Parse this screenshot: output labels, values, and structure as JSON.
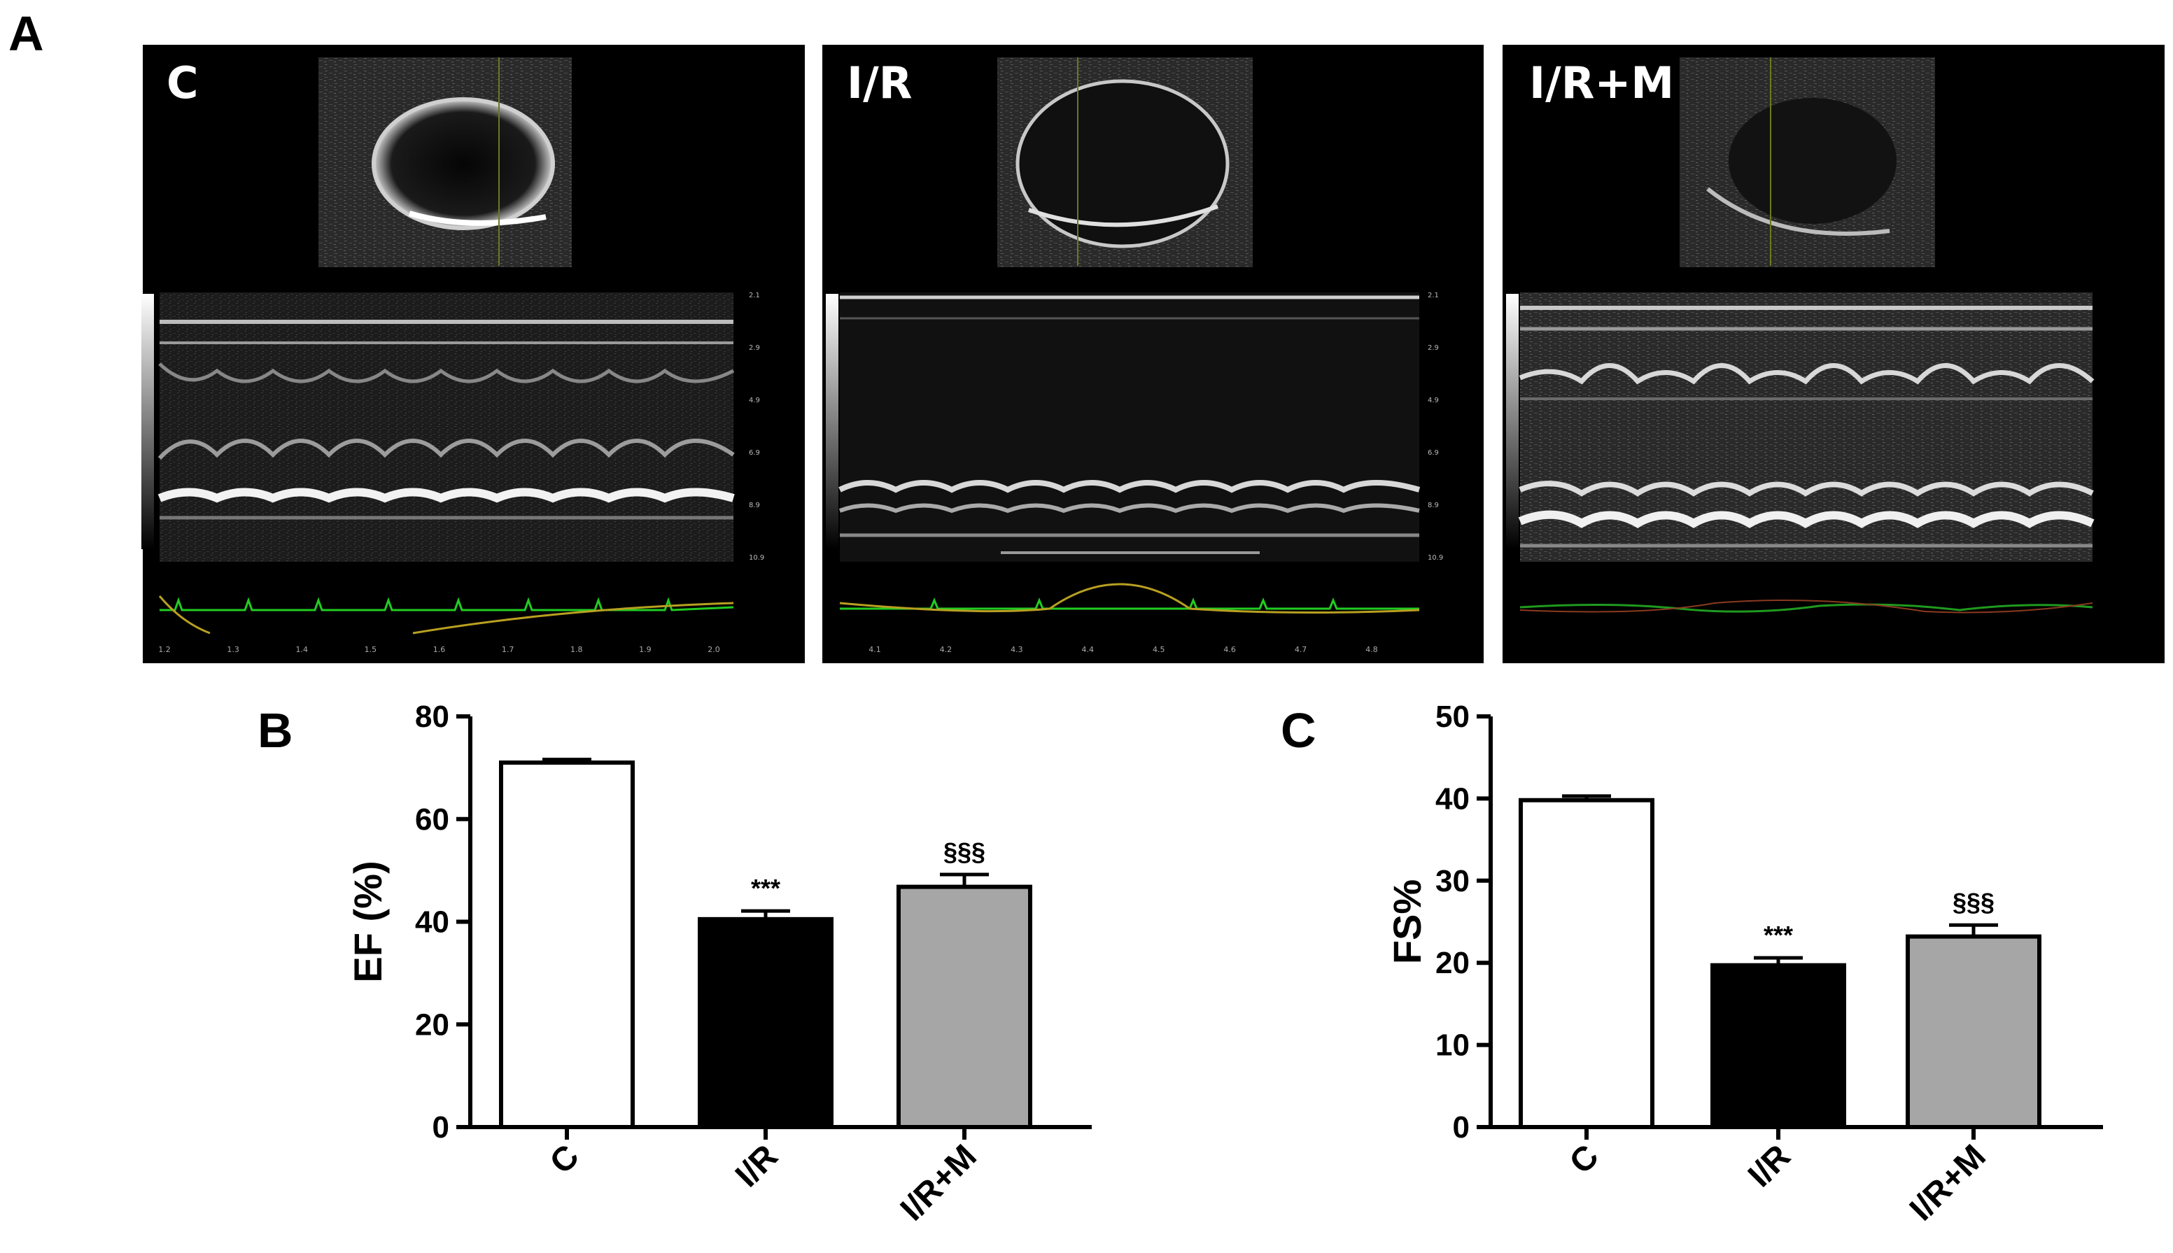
{
  "figure": {
    "panel_a_label": "A",
    "panel_b_label": "B",
    "panel_c_label": "C"
  },
  "echo_panels": [
    {
      "label": "C",
      "x_ticks": [
        "1.2",
        "1.3",
        "1.4",
        "1.5",
        "1.6",
        "1.7",
        "1.8",
        "1.9",
        "2.0"
      ],
      "depth_ticks": [
        "2.1",
        "2.9",
        "4.9",
        "6.9",
        "8.9",
        "10.9"
      ]
    },
    {
      "label": "I/R",
      "x_ticks": [
        "4.1",
        "4.2",
        "4.3",
        "4.4",
        "4.5",
        "4.6",
        "4.7",
        "4.8"
      ],
      "depth_ticks": [
        "2.1",
        "2.9",
        "4.9",
        "6.9",
        "8.9",
        "10.9"
      ]
    },
    {
      "label": "I/R+M",
      "x_ticks": [],
      "depth_ticks": []
    }
  ],
  "colors": {
    "control_bar": "#ffffff",
    "ir_bar": "#000000",
    "irm_bar": "#a6a6a6",
    "ecg_trace": "#22cc22",
    "resp_trace": "#b8a020"
  },
  "chart_data": [
    {
      "type": "bar",
      "panel": "B",
      "title": "",
      "xlabel": "",
      "ylabel": "EF (%)",
      "categories": [
        "C",
        "I/R",
        "I/R+M"
      ],
      "values": [
        71,
        40.5,
        46.8
      ],
      "errors": [
        0.6,
        1.6,
        2.4
      ],
      "significance": [
        "",
        "***",
        "§§§"
      ],
      "ylim": [
        0,
        80
      ],
      "yticks": [
        0,
        20,
        40,
        60,
        80
      ],
      "grid": false,
      "legend": "none"
    },
    {
      "type": "bar",
      "panel": "C",
      "title": "",
      "xlabel": "",
      "ylabel": "FS%",
      "categories": [
        "C",
        "I/R",
        "I/R+M"
      ],
      "values": [
        39.8,
        19.7,
        23.2
      ],
      "errors": [
        0.5,
        0.9,
        1.4
      ],
      "significance": [
        "",
        "***",
        "§§§"
      ],
      "ylim": [
        0,
        50
      ],
      "yticks": [
        0,
        10,
        20,
        30,
        40,
        50
      ],
      "grid": false,
      "legend": "none"
    }
  ]
}
